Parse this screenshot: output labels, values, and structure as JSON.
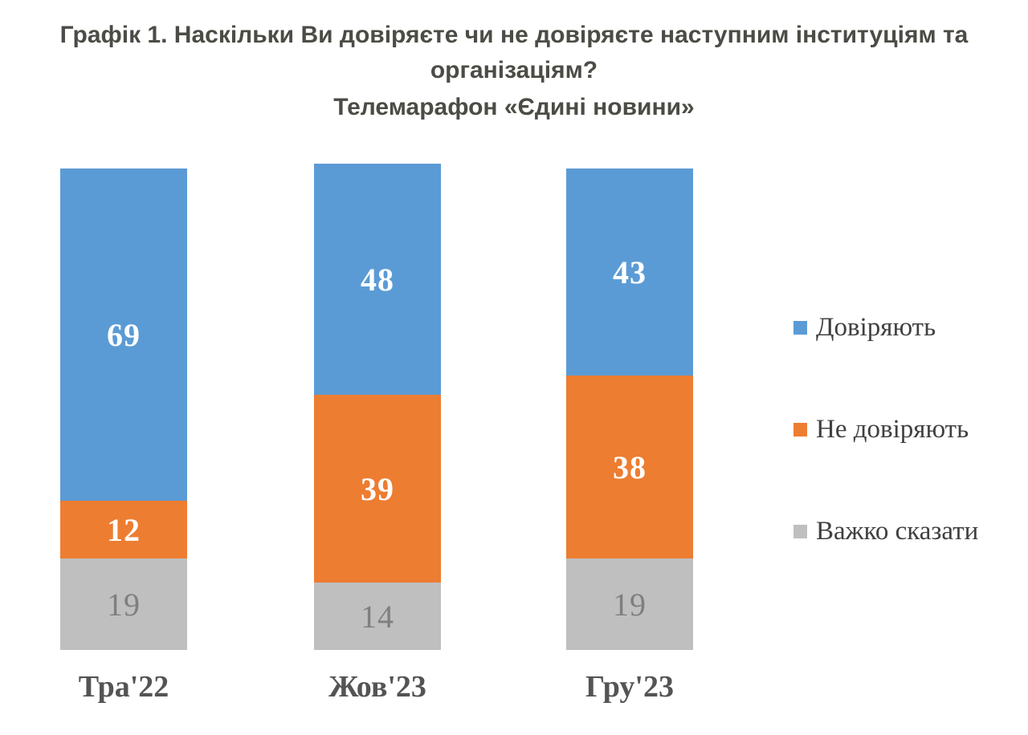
{
  "header": {
    "title_lines": [
      "Графік 1. Наскільки Ви довіряєте чи не довіряєте наступним інституціям та",
      "організаціям?"
    ],
    "subtitle": "Телемарафон «Єдині новини»"
  },
  "chart_data": {
    "type": "bar",
    "stacked": true,
    "unit": "percent",
    "title": "Графік 1. Наскільки Ви довіряєте чи не довіряєте наступним інституціям та організаціям?",
    "subtitle": "Телемарафон «Єдині новини»",
    "categories": [
      "Тра'22",
      "Жов'23",
      "Гру'23"
    ],
    "series": [
      {
        "name": "Довіряють",
        "color": "#5B9BD5",
        "label_color": "#FFFFFF",
        "values": [
          69,
          48,
          43
        ]
      },
      {
        "name": "Не довіряють",
        "color": "#ED7D31",
        "label_color": "#FFFFFF",
        "values": [
          12,
          39,
          38
        ]
      },
      {
        "name": "Важко сказати",
        "color": "#BFBFBF",
        "label_color": "#7F7F7F",
        "values": [
          19,
          14,
          19
        ]
      }
    ],
    "legend_position": "right",
    "grid": false,
    "value_axis_hidden": true
  },
  "colors": {
    "background": "#FFFFFF",
    "title_text": "#4C4C46",
    "category_text": "#545454",
    "legend_text": "#404040"
  }
}
